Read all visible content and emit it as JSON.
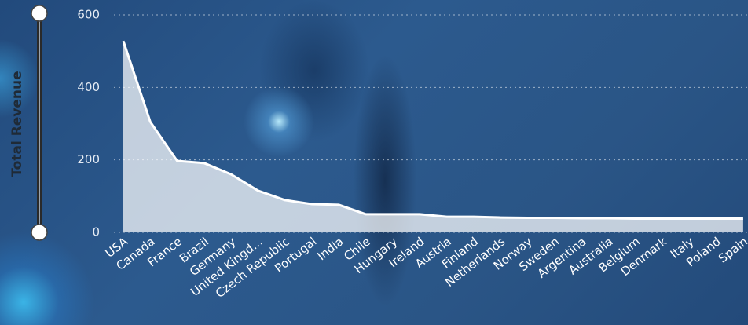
{
  "chart_data": {
    "type": "area",
    "y_label": "Total Revenue",
    "categories": [
      "USA",
      "Canada",
      "France",
      "Brazil",
      "Germany",
      "United Kingd...",
      "Czech Republic",
      "Portugal",
      "India",
      "Chile",
      "Hungary",
      "Ireland",
      "Austria",
      "Finland",
      "Netherlands",
      "Norway",
      "Sweden",
      "Argentina",
      "Australia",
      "Belgium",
      "Denmark",
      "Italy",
      "Poland",
      "Spain"
    ],
    "values": [
      528,
      305,
      197,
      191,
      160,
      115,
      89,
      78,
      76,
      50,
      50,
      50,
      43,
      43,
      41,
      40,
      40,
      39,
      39,
      38,
      38,
      38,
      38,
      38
    ],
    "color": "#ffffff",
    "ylim": [
      0,
      600
    ],
    "yticks": [
      0,
      200,
      400,
      600
    ],
    "grid": true
  }
}
